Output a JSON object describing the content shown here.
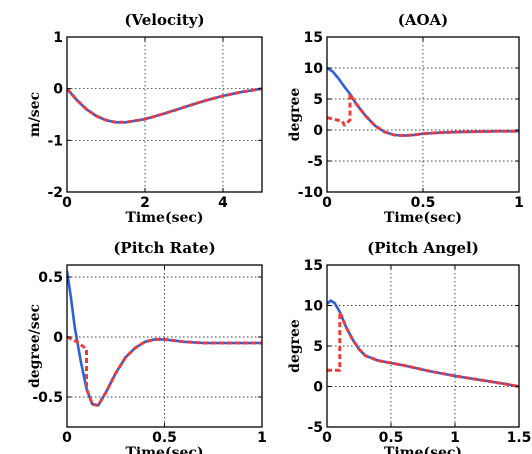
{
  "chart_data": [
    {
      "type": "line",
      "title": "(Velocity)",
      "xlabel": "Time(sec)",
      "ylabel": "m/sec",
      "xlim": [
        0,
        5
      ],
      "ylim": [
        -2,
        1
      ],
      "xticks": [
        0,
        2,
        4
      ],
      "yticks": [
        -2,
        -1,
        0,
        1
      ],
      "grid": true,
      "series": [
        {
          "color": "#2e5fd6",
          "style": "solid",
          "x": [
            0,
            0.25,
            0.5,
            0.75,
            1,
            1.25,
            1.5,
            2,
            2.5,
            3,
            3.5,
            4,
            4.5,
            5
          ],
          "y": [
            0,
            -0.22,
            -0.4,
            -0.53,
            -0.61,
            -0.65,
            -0.65,
            -0.59,
            -0.48,
            -0.36,
            -0.24,
            -0.14,
            -0.06,
            0
          ]
        },
        {
          "color": "#f03a3a",
          "style": "dashed",
          "x": [
            0,
            0.25,
            0.5,
            0.75,
            1,
            1.25,
            1.5,
            2,
            2.5,
            3,
            3.5,
            4,
            4.5,
            5
          ],
          "y": [
            0,
            -0.22,
            -0.4,
            -0.53,
            -0.61,
            -0.65,
            -0.65,
            -0.59,
            -0.48,
            -0.36,
            -0.24,
            -0.14,
            -0.06,
            0
          ]
        }
      ]
    },
    {
      "type": "line",
      "title": "(AOA)",
      "xlabel": "Time(sec)",
      "ylabel": "degree",
      "xlim": [
        0,
        1
      ],
      "ylim": [
        -10,
        15
      ],
      "xticks": [
        0,
        0.5,
        1
      ],
      "yticks": [
        -10,
        -5,
        0,
        5,
        10,
        15
      ],
      "grid": true,
      "series": [
        {
          "color": "#2e5fd6",
          "style": "solid",
          "x": [
            0,
            0.03,
            0.06,
            0.09,
            0.12,
            0.15,
            0.2,
            0.25,
            0.3,
            0.35,
            0.4,
            0.45,
            0.5,
            0.6,
            0.7,
            0.8,
            0.9,
            1
          ],
          "y": [
            10,
            9.4,
            8.3,
            7,
            5.8,
            4.3,
            2.3,
            0.7,
            -0.3,
            -0.8,
            -0.9,
            -0.8,
            -0.6,
            -0.4,
            -0.3,
            -0.25,
            -0.2,
            -0.2
          ]
        },
        {
          "color": "#f03a3a",
          "style": "dashed",
          "x": [
            0,
            0.08,
            0.09,
            0.12,
            0.12,
            0.15,
            0.2,
            0.25,
            0.3,
            0.35,
            0.4,
            0.45,
            0.5,
            0.6,
            0.7,
            0.8,
            0.9,
            1
          ],
          "y": [
            2,
            1.4,
            0.8,
            1.6,
            5.8,
            4.3,
            2.3,
            0.7,
            -0.3,
            -0.8,
            -0.9,
            -0.8,
            -0.6,
            -0.4,
            -0.3,
            -0.25,
            -0.2,
            -0.2
          ]
        }
      ]
    },
    {
      "type": "line",
      "title": "(Pitch Rate)",
      "xlabel": "Time(sec)",
      "ylabel": "degree/sec",
      "xlim": [
        0,
        1
      ],
      "ylim": [
        -0.75,
        0.6
      ],
      "xticks": [
        0,
        0.5,
        1
      ],
      "yticks": [
        -0.5,
        0,
        0.5
      ],
      "grid": true,
      "series": [
        {
          "color": "#2e5fd6",
          "style": "solid",
          "x": [
            0,
            0.02,
            0.04,
            0.07,
            0.1,
            0.13,
            0.16,
            0.2,
            0.25,
            0.3,
            0.35,
            0.4,
            0.45,
            0.5,
            0.55,
            0.6,
            0.7,
            0.8,
            0.9,
            1
          ],
          "y": [
            0.55,
            0.33,
            0.08,
            -0.2,
            -0.43,
            -0.56,
            -0.57,
            -0.46,
            -0.3,
            -0.17,
            -0.09,
            -0.04,
            -0.02,
            -0.02,
            -0.03,
            -0.04,
            -0.05,
            -0.05,
            -0.05,
            -0.05
          ]
        },
        {
          "color": "#f03a3a",
          "style": "dashed",
          "x": [
            0,
            0.05,
            0.1,
            0.1,
            0.13,
            0.16,
            0.2,
            0.25,
            0.3,
            0.35,
            0.4,
            0.45,
            0.5,
            0.55,
            0.6,
            0.7,
            0.8,
            0.9,
            1
          ],
          "y": [
            0,
            -0.04,
            -0.1,
            -0.43,
            -0.56,
            -0.57,
            -0.46,
            -0.3,
            -0.17,
            -0.09,
            -0.04,
            -0.02,
            -0.02,
            -0.03,
            -0.04,
            -0.05,
            -0.05,
            -0.05,
            -0.05
          ]
        }
      ]
    },
    {
      "type": "line",
      "title": "(Pitch Angel)",
      "xlabel": "Time(sec)",
      "ylabel": "degree",
      "xlim": [
        0,
        1.5
      ],
      "ylim": [
        -5,
        15
      ],
      "xticks": [
        0,
        0.5,
        1,
        1.5
      ],
      "yticks": [
        -5,
        0,
        5,
        10,
        15
      ],
      "grid": true,
      "series": [
        {
          "color": "#2e5fd6",
          "style": "solid",
          "x": [
            0,
            0.03,
            0.06,
            0.1,
            0.15,
            0.2,
            0.25,
            0.3,
            0.4,
            0.5,
            0.6,
            0.8,
            1,
            1.2,
            1.4,
            1.5
          ],
          "y": [
            10.2,
            10.6,
            10.3,
            9.2,
            7.3,
            5.8,
            4.6,
            3.8,
            3.2,
            2.9,
            2.6,
            1.9,
            1.3,
            0.8,
            0.3,
            0
          ]
        },
        {
          "color": "#f03a3a",
          "style": "dashed",
          "x": [
            0,
            0.05,
            0.1,
            0.1,
            0.15,
            0.2,
            0.25,
            0.3,
            0.4,
            0.5,
            0.6,
            0.8,
            1,
            1.2,
            1.4,
            1.5
          ],
          "y": [
            2,
            2,
            2,
            9.2,
            7.3,
            5.8,
            4.6,
            3.8,
            3.2,
            2.9,
            2.6,
            1.9,
            1.3,
            0.8,
            0.3,
            0
          ]
        }
      ]
    }
  ]
}
